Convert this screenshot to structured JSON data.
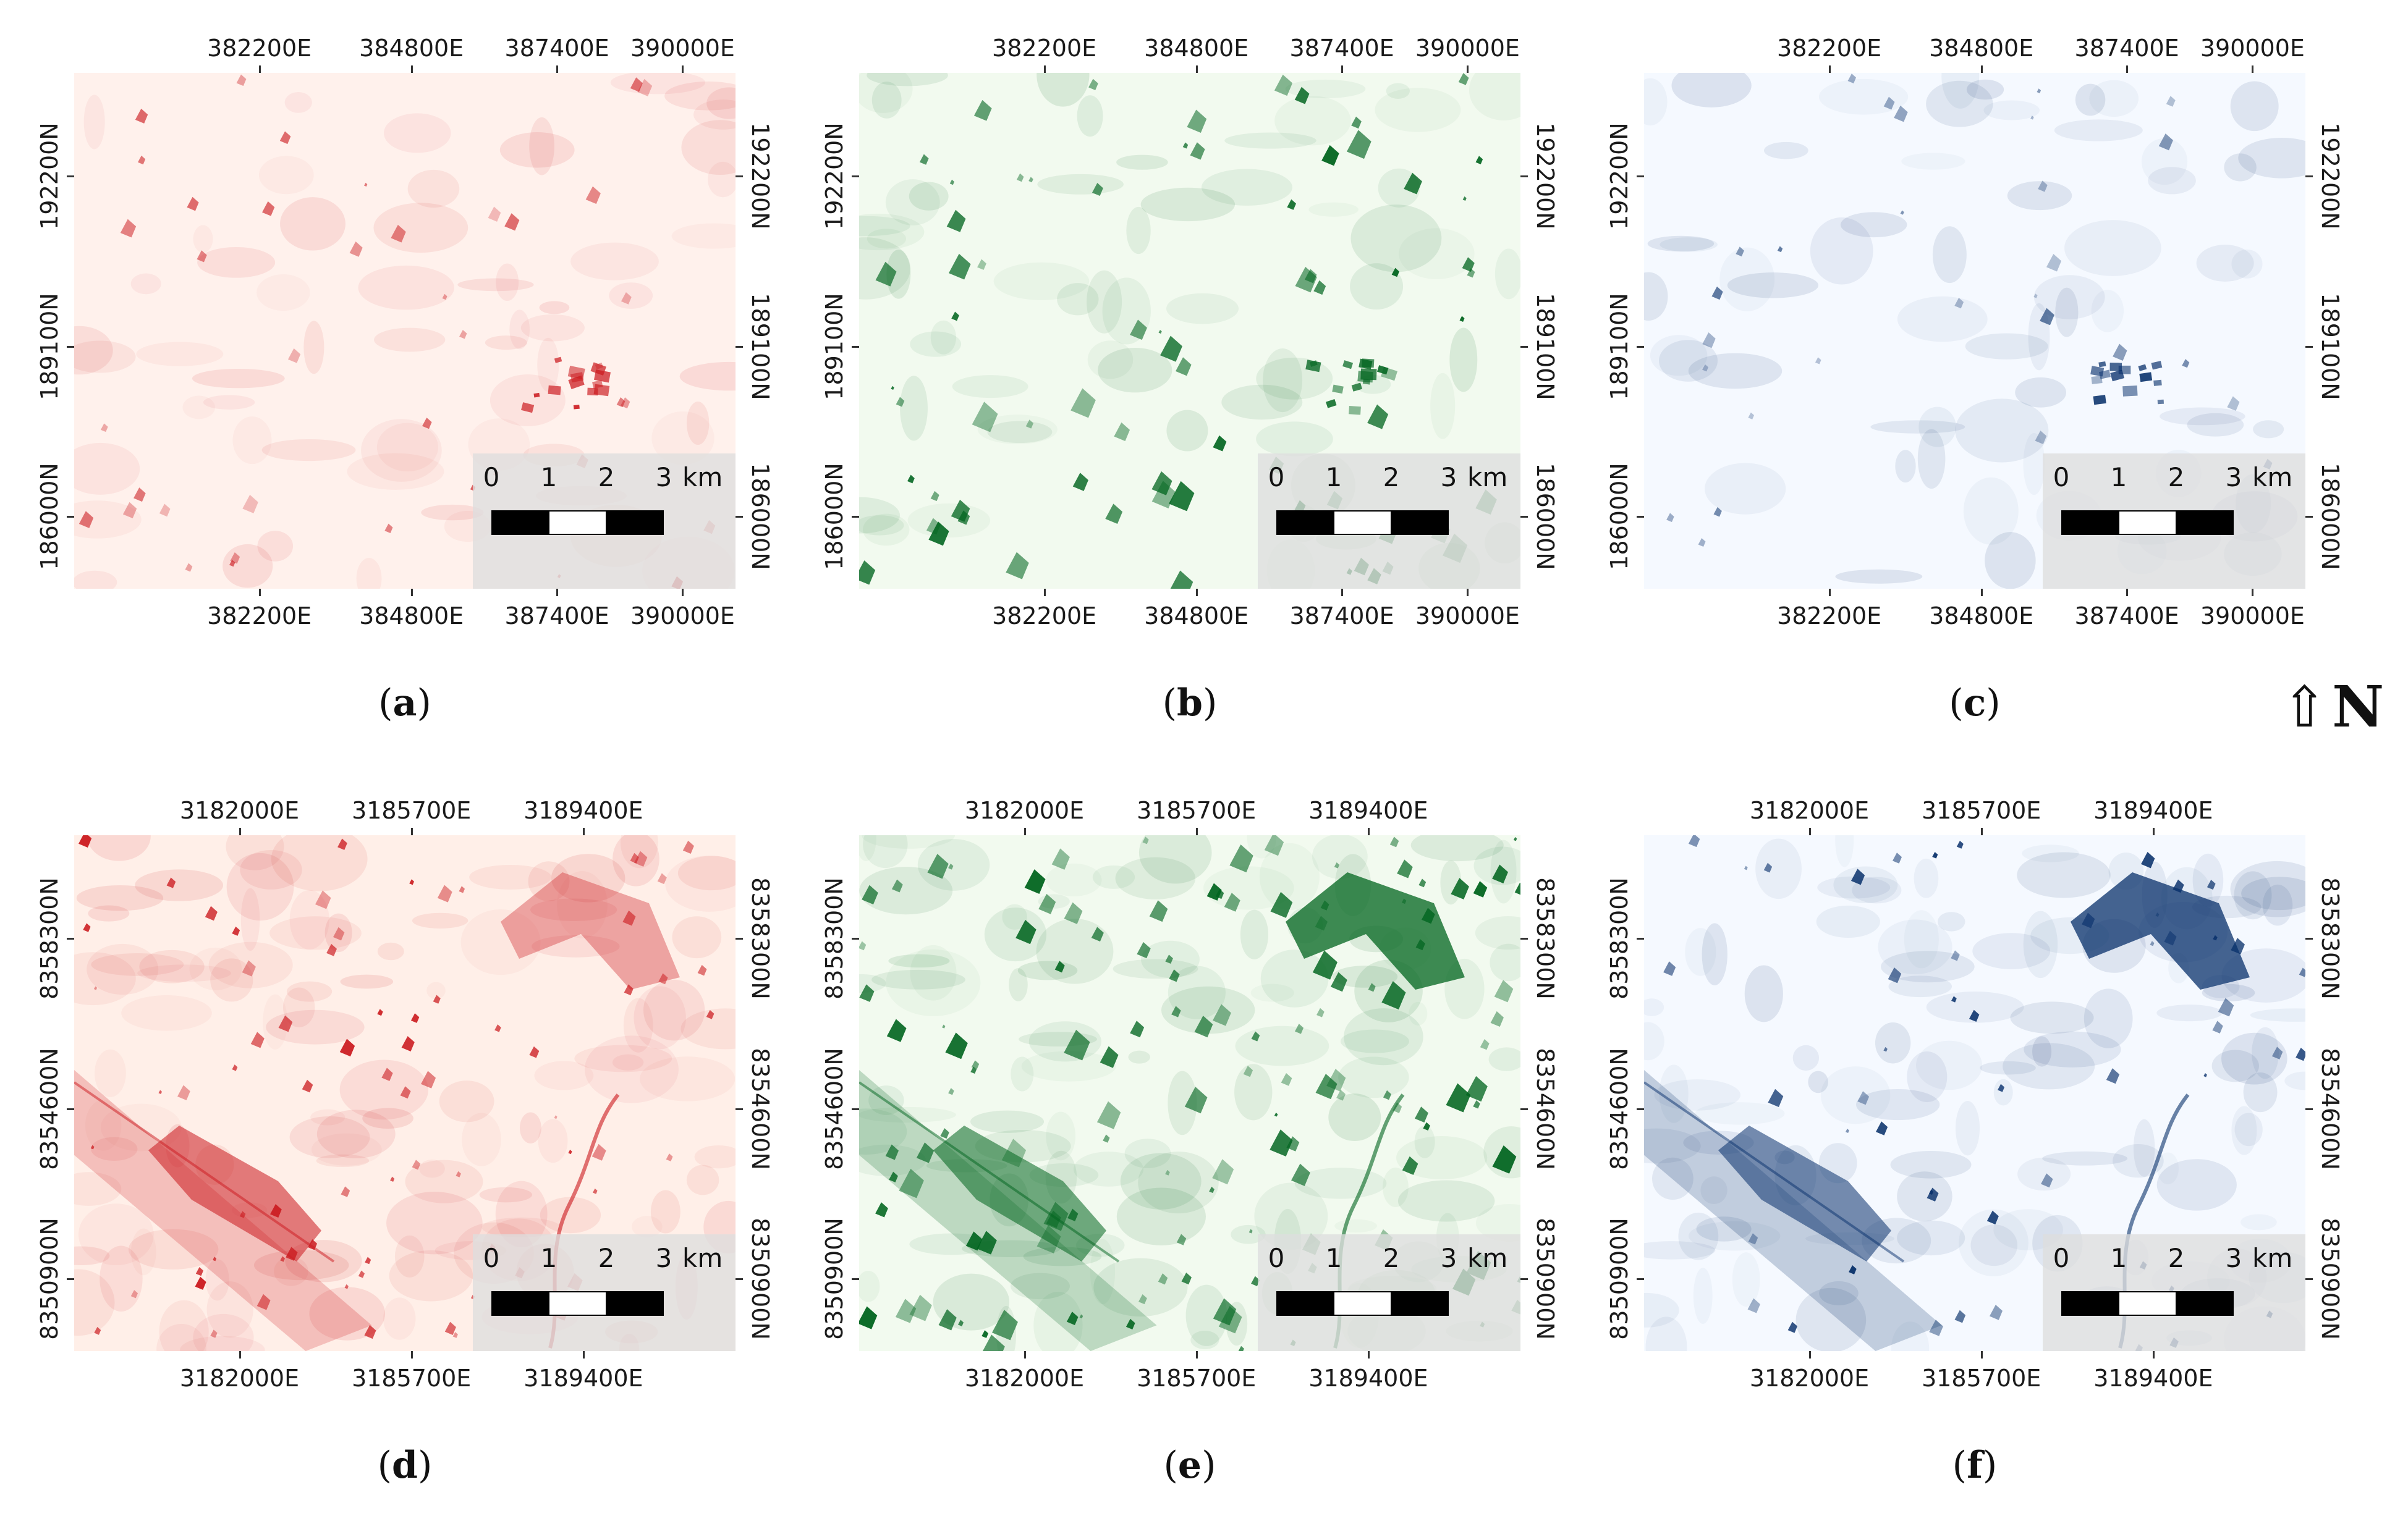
{
  "figure": {
    "north_arrow": {
      "glyph": "⇧",
      "label": "N"
    },
    "colormaps": {
      "reds": "#cb181d",
      "greens": "#00641e",
      "blues": "#08306b"
    },
    "panels": [
      {
        "id": "a",
        "caption": "a",
        "colormap": "reds",
        "background": "#fff1ec",
        "x_ticks": [
          "382200E",
          "384800E",
          "387400E",
          "390000E"
        ],
        "y_ticks": [
          "192200N",
          "189100N",
          "186000N"
        ],
        "scalebar": {
          "labels": [
            "0",
            "1",
            "2",
            "3"
          ],
          "unit": "km"
        }
      },
      {
        "id": "b",
        "caption": "b",
        "colormap": "greens",
        "background": "#f2faef",
        "x_ticks": [
          "382200E",
          "384800E",
          "387400E",
          "390000E"
        ],
        "y_ticks": [
          "192200N",
          "189100N",
          "186000N"
        ],
        "scalebar": {
          "labels": [
            "0",
            "1",
            "2",
            "3"
          ],
          "unit": "km"
        }
      },
      {
        "id": "c",
        "caption": "c",
        "colormap": "blues",
        "background": "#f5f9ff",
        "x_ticks": [
          "382200E",
          "384800E",
          "387400E",
          "390000E"
        ],
        "y_ticks": [
          "192200N",
          "189100N",
          "186000N"
        ],
        "scalebar": {
          "labels": [
            "0",
            "1",
            "2",
            "3"
          ],
          "unit": "km"
        }
      },
      {
        "id": "d",
        "caption": "d",
        "colormap": "reds",
        "background": "#ffefe8",
        "x_ticks": [
          "3182000E",
          "3185700E",
          "3189400E"
        ],
        "y_ticks": [
          "8358300N",
          "8354600N",
          "8350900N"
        ],
        "scalebar": {
          "labels": [
            "0",
            "1",
            "2",
            "3"
          ],
          "unit": "km"
        }
      },
      {
        "id": "e",
        "caption": "e",
        "colormap": "greens",
        "background": "#f2faef",
        "x_ticks": [
          "3182000E",
          "3185700E",
          "3189400E"
        ],
        "y_ticks": [
          "8358300N",
          "8354600N",
          "8350900N"
        ],
        "scalebar": {
          "labels": [
            "0",
            "1",
            "2",
            "3"
          ],
          "unit": "km"
        }
      },
      {
        "id": "f",
        "caption": "f",
        "colormap": "blues",
        "background": "#f5f9ff",
        "x_ticks": [
          "3182000E",
          "3185700E",
          "3189400E"
        ],
        "y_ticks": [
          "8358300N",
          "8354600N",
          "8350900N"
        ],
        "scalebar": {
          "labels": [
            "0",
            "1",
            "2",
            "3"
          ],
          "unit": "km"
        }
      }
    ]
  }
}
